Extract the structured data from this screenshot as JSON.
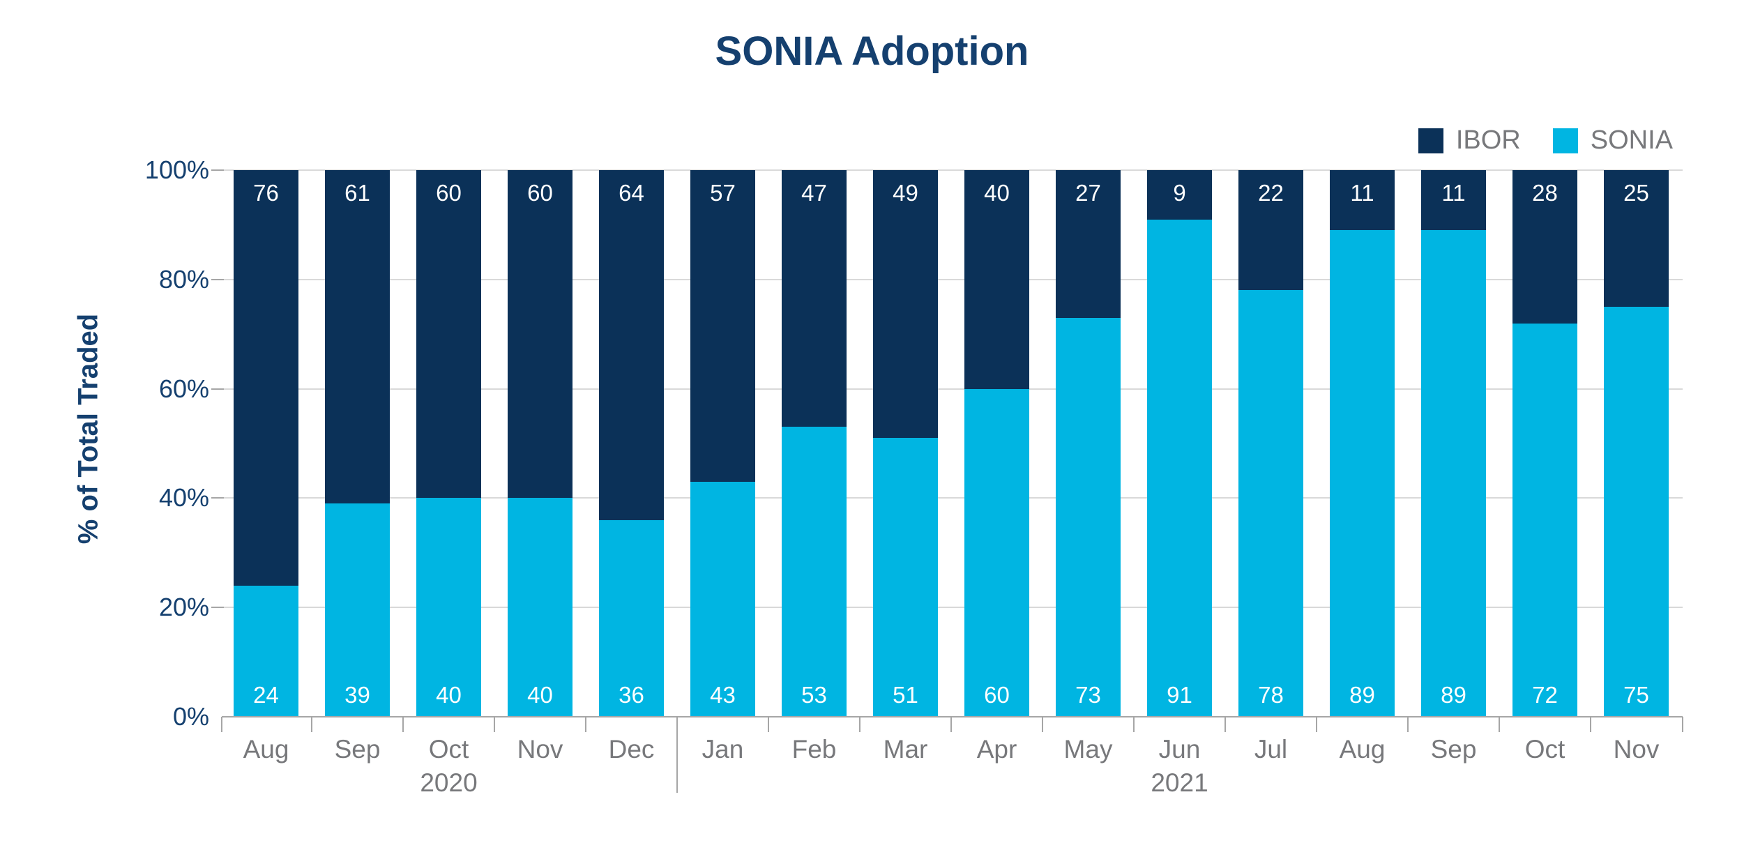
{
  "chart_data": {
    "type": "bar",
    "subtype": "stacked-vertical",
    "title": "SONIA Adoption",
    "ylabel": "% of Total Traded",
    "xlabel": "",
    "ylim": [
      0,
      100
    ],
    "ytick_labels": [
      "0%",
      "20%",
      "40%",
      "60%",
      "80%",
      "100%"
    ],
    "ytick_values": [
      0,
      20,
      40,
      60,
      80,
      100
    ],
    "grid": "horizontal",
    "legend_position": "top-right",
    "categories": [
      "Aug",
      "Sep",
      "Oct",
      "Nov",
      "Dec",
      "Jan",
      "Feb",
      "Mar",
      "Apr",
      "May",
      "Jun",
      "Jul",
      "Aug",
      "Sep",
      "Oct",
      "Nov"
    ],
    "year_groups": [
      {
        "label": "2020",
        "start": 0,
        "end": 4
      },
      {
        "label": "2021",
        "start": 5,
        "end": 15
      }
    ],
    "series": [
      {
        "name": "IBOR",
        "color": "#0b3158",
        "values": [
          76,
          61,
          60,
          60,
          64,
          57,
          47,
          49,
          40,
          27,
          9,
          22,
          11,
          11,
          28,
          25
        ]
      },
      {
        "name": "SONIA",
        "color": "#00b5e2",
        "values": [
          24,
          39,
          40,
          40,
          36,
          43,
          53,
          51,
          60,
          73,
          91,
          78,
          89,
          89,
          72,
          75
        ]
      }
    ],
    "value_labels": "inside-segment-white"
  },
  "colors": {
    "title_text": "#15406f",
    "axis_text_navy": "#15406f",
    "gray_text": "#77787b",
    "gridline": "#d9d9d9",
    "axis_line": "#a6a6a6",
    "background": "#ffffff"
  }
}
